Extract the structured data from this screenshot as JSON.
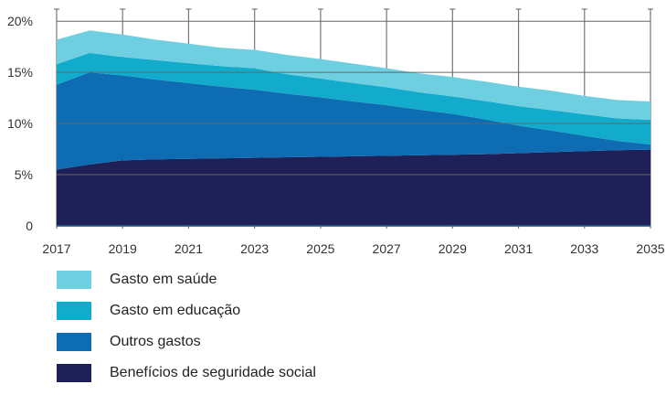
{
  "chart_data": {
    "type": "area",
    "stacked": true,
    "x": [
      2017,
      2018,
      2019,
      2020,
      2021,
      2022,
      2023,
      2024,
      2025,
      2026,
      2027,
      2028,
      2029,
      2030,
      2031,
      2032,
      2033,
      2034,
      2035
    ],
    "x_tick_labels": [
      "2017",
      "2019",
      "2021",
      "2023",
      "2025",
      "2027",
      "2029",
      "2031",
      "2033",
      "2035"
    ],
    "y_ticks": [
      0,
      5,
      10,
      15,
      20
    ],
    "y_tick_labels": [
      "0",
      "5%",
      "10%",
      "15%",
      "20%"
    ],
    "ylim": [
      0,
      21
    ],
    "grid": true,
    "legend_position": "bottom",
    "series": [
      {
        "name": "Benefícios de seguridade social",
        "color": "#202058",
        "values": [
          5.5,
          6.0,
          6.4,
          6.5,
          6.55,
          6.6,
          6.65,
          6.7,
          6.75,
          6.8,
          6.85,
          6.9,
          6.95,
          7.0,
          7.1,
          7.2,
          7.3,
          7.4,
          7.45
        ]
      },
      {
        "name": "Outros gastos",
        "color": "#0E6CB2",
        "values": [
          8.3,
          9.0,
          8.3,
          7.8,
          7.4,
          7.0,
          6.65,
          6.2,
          5.8,
          5.35,
          4.95,
          4.45,
          4.0,
          3.4,
          2.7,
          2.1,
          1.5,
          0.9,
          0.5
        ]
      },
      {
        "name": "Gasto em educação",
        "color": "#12ABCC",
        "values": [
          2.0,
          1.9,
          1.8,
          1.9,
          1.95,
          2.0,
          2.1,
          1.9,
          1.85,
          1.8,
          1.75,
          1.7,
          1.7,
          1.8,
          1.9,
          2.0,
          2.1,
          2.2,
          2.4
        ]
      },
      {
        "name": "Gasto em saúde",
        "color": "#6ECFE0",
        "values": [
          2.4,
          2.2,
          2.2,
          2.0,
          1.9,
          1.8,
          1.8,
          1.9,
          1.9,
          1.9,
          1.85,
          1.85,
          1.9,
          1.9,
          1.9,
          1.9,
          1.8,
          1.8,
          1.8
        ]
      }
    ]
  },
  "legend": {
    "items": [
      {
        "label": "Gasto em saúde",
        "color": "#6ECFE0"
      },
      {
        "label": "Gasto em educação",
        "color": "#12ABCC"
      },
      {
        "label": "Outros gastos",
        "color": "#0E6CB2"
      },
      {
        "label": "Benefícios de seguridade social",
        "color": "#202058"
      }
    ]
  }
}
